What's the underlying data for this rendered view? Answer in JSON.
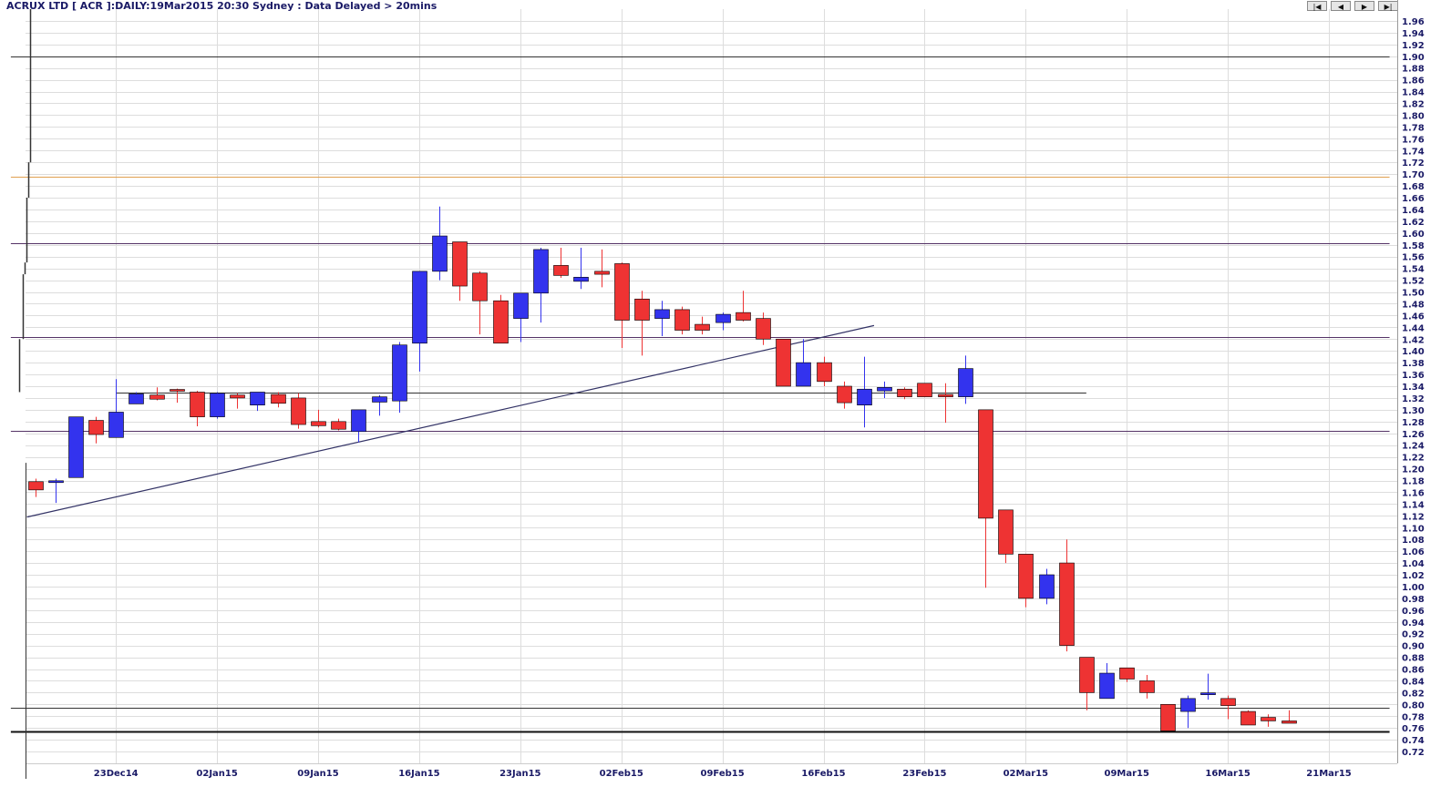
{
  "header": {
    "title": "ACRUX LTD [ ACR ]:DAILY:19Mar2015 20:30 Sydney : Data Delayed > 20mins"
  },
  "nav": {
    "first": "|◀",
    "prev": "◀",
    "next": "▶",
    "last": "▶|"
  },
  "colors": {
    "up": "#3333ee",
    "down": "#ee3333",
    "grid": "#dddddd",
    "axis_text": "#1a1a66",
    "orange_line": "#e0a050",
    "purple_line": "#553366",
    "trend_line": "#333366",
    "dark_line": "#333333"
  },
  "chart_data": {
    "type": "candlestick",
    "ylim": [
      0.7,
      1.98
    ],
    "y_ticks": [
      0.72,
      0.74,
      0.76,
      0.78,
      0.8,
      0.82,
      0.84,
      0.86,
      0.88,
      0.9,
      0.92,
      0.94,
      0.96,
      0.98,
      1.0,
      1.02,
      1.04,
      1.06,
      1.08,
      1.1,
      1.12,
      1.14,
      1.16,
      1.18,
      1.2,
      1.22,
      1.24,
      1.26,
      1.28,
      1.3,
      1.32,
      1.34,
      1.36,
      1.38,
      1.4,
      1.42,
      1.44,
      1.46,
      1.48,
      1.5,
      1.52,
      1.54,
      1.56,
      1.58,
      1.6,
      1.62,
      1.64,
      1.66,
      1.68,
      1.7,
      1.72,
      1.74,
      1.76,
      1.78,
      1.8,
      1.82,
      1.84,
      1.86,
      1.88,
      1.9,
      1.92,
      1.94,
      1.96
    ],
    "x_ticks": [
      "23Dec14",
      "02Jan15",
      "09Jan15",
      "16Jan15",
      "23Jan15",
      "02Feb15",
      "09Feb15",
      "16Feb15",
      "23Feb15",
      "02Mar15",
      "09Mar15",
      "16Mar15",
      "21Mar15"
    ],
    "x_tick_slots": [
      4,
      9,
      14,
      19,
      24,
      29,
      34,
      39,
      44,
      49,
      54,
      59,
      64
    ],
    "grid": true,
    "candles": [
      {
        "slot": 0,
        "o": 1.178,
        "h": 1.183,
        "l": 1.152,
        "c": 1.164
      },
      {
        "slot": 1,
        "o": 1.178,
        "h": 1.183,
        "l": 1.142,
        "c": 1.178
      },
      {
        "slot": 2,
        "o": 1.185,
        "h": 1.288,
        "l": 1.185,
        "c": 1.288
      },
      {
        "slot": 3,
        "o": 1.282,
        "h": 1.288,
        "l": 1.243,
        "c": 1.258
      },
      {
        "slot": 4,
        "o": 1.253,
        "h": 1.352,
        "l": 1.253,
        "c": 1.296
      },
      {
        "slot": 5,
        "o": 1.31,
        "h": 1.33,
        "l": 1.31,
        "c": 1.327
      },
      {
        "slot": 6,
        "o": 1.325,
        "h": 1.338,
        "l": 1.316,
        "c": 1.318
      },
      {
        "slot": 7,
        "o": 1.333,
        "h": 1.336,
        "l": 1.312,
        "c": 1.33
      },
      {
        "slot": 8,
        "o": 1.33,
        "h": 1.332,
        "l": 1.272,
        "c": 1.288
      },
      {
        "slot": 9,
        "o": 1.288,
        "h": 1.33,
        "l": 1.285,
        "c": 1.328
      },
      {
        "slot": 10,
        "o": 1.325,
        "h": 1.328,
        "l": 1.302,
        "c": 1.32
      },
      {
        "slot": 11,
        "o": 1.308,
        "h": 1.33,
        "l": 1.298,
        "c": 1.33
      },
      {
        "slot": 12,
        "o": 1.326,
        "h": 1.33,
        "l": 1.304,
        "c": 1.311
      },
      {
        "slot": 13,
        "o": 1.32,
        "h": 1.328,
        "l": 1.268,
        "c": 1.275
      },
      {
        "slot": 14,
        "o": 1.28,
        "h": 1.3,
        "l": 1.27,
        "c": 1.273
      },
      {
        "slot": 15,
        "o": 1.28,
        "h": 1.285,
        "l": 1.265,
        "c": 1.267
      },
      {
        "slot": 16,
        "o": 1.263,
        "h": 1.3,
        "l": 1.245,
        "c": 1.3
      },
      {
        "slot": 17,
        "o": 1.313,
        "h": 1.325,
        "l": 1.29,
        "c": 1.322
      },
      {
        "slot": 18,
        "o": 1.315,
        "h": 1.415,
        "l": 1.295,
        "c": 1.41
      },
      {
        "slot": 19,
        "o": 1.413,
        "h": 1.535,
        "l": 1.365,
        "c": 1.535
      },
      {
        "slot": 20,
        "o": 1.535,
        "h": 1.645,
        "l": 1.52,
        "c": 1.595
      },
      {
        "slot": 21,
        "o": 1.585,
        "h": 1.585,
        "l": 1.485,
        "c": 1.51
      },
      {
        "slot": 22,
        "o": 1.532,
        "h": 1.535,
        "l": 1.428,
        "c": 1.485
      },
      {
        "slot": 23,
        "o": 1.485,
        "h": 1.495,
        "l": 1.413,
        "c": 1.413
      },
      {
        "slot": 24,
        "o": 1.455,
        "h": 1.498,
        "l": 1.415,
        "c": 1.498
      },
      {
        "slot": 25,
        "o": 1.498,
        "h": 1.575,
        "l": 1.448,
        "c": 1.572
      },
      {
        "slot": 26,
        "o": 1.545,
        "h": 1.575,
        "l": 1.524,
        "c": 1.528
      },
      {
        "slot": 27,
        "o": 1.518,
        "h": 1.575,
        "l": 1.505,
        "c": 1.525
      },
      {
        "slot": 28,
        "o": 1.535,
        "h": 1.572,
        "l": 1.508,
        "c": 1.53
      },
      {
        "slot": 29,
        "o": 1.548,
        "h": 1.55,
        "l": 1.405,
        "c": 1.452
      },
      {
        "slot": 30,
        "o": 1.488,
        "h": 1.502,
        "l": 1.392,
        "c": 1.452
      },
      {
        "slot": 31,
        "o": 1.455,
        "h": 1.485,
        "l": 1.425,
        "c": 1.47
      },
      {
        "slot": 32,
        "o": 1.47,
        "h": 1.475,
        "l": 1.428,
        "c": 1.435
      },
      {
        "slot": 33,
        "o": 1.445,
        "h": 1.458,
        "l": 1.428,
        "c": 1.435
      },
      {
        "slot": 34,
        "o": 1.448,
        "h": 1.465,
        "l": 1.435,
        "c": 1.462
      },
      {
        "slot": 35,
        "o": 1.465,
        "h": 1.502,
        "l": 1.45,
        "c": 1.452
      },
      {
        "slot": 36,
        "o": 1.455,
        "h": 1.465,
        "l": 1.41,
        "c": 1.42
      },
      {
        "slot": 37,
        "o": 1.42,
        "h": 1.42,
        "l": 1.34,
        "c": 1.34
      },
      {
        "slot": 38,
        "o": 1.34,
        "h": 1.42,
        "l": 1.34,
        "c": 1.38
      },
      {
        "slot": 39,
        "o": 1.38,
        "h": 1.39,
        "l": 1.34,
        "c": 1.348
      },
      {
        "slot": 40,
        "o": 1.34,
        "h": 1.348,
        "l": 1.302,
        "c": 1.312
      },
      {
        "slot": 41,
        "o": 1.308,
        "h": 1.39,
        "l": 1.27,
        "c": 1.335
      },
      {
        "slot": 42,
        "o": 1.332,
        "h": 1.348,
        "l": 1.32,
        "c": 1.338
      },
      {
        "slot": 43,
        "o": 1.335,
        "h": 1.338,
        "l": 1.318,
        "c": 1.322
      },
      {
        "slot": 44,
        "o": 1.345,
        "h": 1.345,
        "l": 1.322,
        "c": 1.322
      },
      {
        "slot": 45,
        "o": 1.326,
        "h": 1.345,
        "l": 1.278,
        "c": 1.322
      },
      {
        "slot": 46,
        "o": 1.322,
        "h": 1.392,
        "l": 1.31,
        "c": 1.37
      },
      {
        "slot": 47,
        "o": 1.3,
        "h": 1.3,
        "l": 0.998,
        "c": 1.116
      },
      {
        "slot": 48,
        "o": 1.13,
        "h": 1.13,
        "l": 1.04,
        "c": 1.055
      },
      {
        "slot": 49,
        "o": 1.055,
        "h": 1.055,
        "l": 0.965,
        "c": 0.98
      },
      {
        "slot": 50,
        "o": 0.98,
        "h": 1.03,
        "l": 0.97,
        "c": 1.02
      },
      {
        "slot": 51,
        "o": 1.04,
        "h": 1.08,
        "l": 0.89,
        "c": 0.9
      },
      {
        "slot": 52,
        "o": 0.88,
        "h": 0.88,
        "l": 0.79,
        "c": 0.82
      },
      {
        "slot": 53,
        "o": 0.81,
        "h": 0.87,
        "l": 0.81,
        "c": 0.853
      },
      {
        "slot": 54,
        "o": 0.862,
        "h": 0.862,
        "l": 0.838,
        "c": 0.843
      },
      {
        "slot": 55,
        "o": 0.84,
        "h": 0.85,
        "l": 0.81,
        "c": 0.82
      },
      {
        "slot": 56,
        "o": 0.8,
        "h": 0.8,
        "l": 0.755,
        "c": 0.755
      },
      {
        "slot": 57,
        "o": 0.788,
        "h": 0.815,
        "l": 0.76,
        "c": 0.81
      },
      {
        "slot": 58,
        "o": 0.818,
        "h": 0.852,
        "l": 0.808,
        "c": 0.818
      },
      {
        "slot": 59,
        "o": 0.81,
        "h": 0.815,
        "l": 0.775,
        "c": 0.798
      },
      {
        "slot": 60,
        "o": 0.788,
        "h": 0.79,
        "l": 0.765,
        "c": 0.765
      },
      {
        "slot": 61,
        "o": 0.778,
        "h": 0.783,
        "l": 0.762,
        "c": 0.772
      },
      {
        "slot": 62,
        "o": 0.772,
        "h": 0.79,
        "l": 0.768,
        "c": 0.768
      }
    ],
    "left_ladder": [
      {
        "x_slot": -0.8,
        "y1": 1.33,
        "y2": 1.42
      },
      {
        "x_slot": -0.6,
        "y1": 1.53,
        "y2": 1.42
      },
      {
        "x_slot": -0.5,
        "y1": 1.53,
        "y2": 1.55
      },
      {
        "x_slot": -0.45,
        "y1": 1.55,
        "y2": 1.66
      },
      {
        "x_slot": -0.35,
        "y1": 1.66,
        "y2": 1.72
      },
      {
        "x_slot": -0.25,
        "y1": 1.72,
        "y2": 1.98
      }
    ],
    "horizontal_lines": [
      {
        "y": 1.9,
        "x1_slot": -1.2,
        "x2_slot": 67,
        "color": "dark"
      },
      {
        "y": 1.695,
        "x1_slot": -1.2,
        "x2_slot": 67,
        "color": "orange"
      },
      {
        "y": 1.583,
        "x1_slot": -1.2,
        "x2_slot": 67,
        "color": "purple"
      },
      {
        "y": 1.424,
        "x1_slot": -1.2,
        "x2_slot": 67,
        "color": "purple"
      },
      {
        "y": 1.329,
        "x1_slot": 4,
        "x2_slot": 52,
        "color": "dark"
      },
      {
        "y": 1.265,
        "x1_slot": -1.2,
        "x2_slot": 67,
        "color": "purple"
      },
      {
        "y": 0.795,
        "x1_slot": -1.2,
        "x2_slot": 67,
        "color": "dark"
      },
      {
        "y": 0.754,
        "x1_slot": -1.2,
        "x2_slot": 67,
        "color": "dark_thick"
      }
    ],
    "trend_lines": [
      {
        "x1_slot": -0.4,
        "y1": 1.118,
        "x2_slot": 41.5,
        "y2": 1.443
      }
    ]
  }
}
